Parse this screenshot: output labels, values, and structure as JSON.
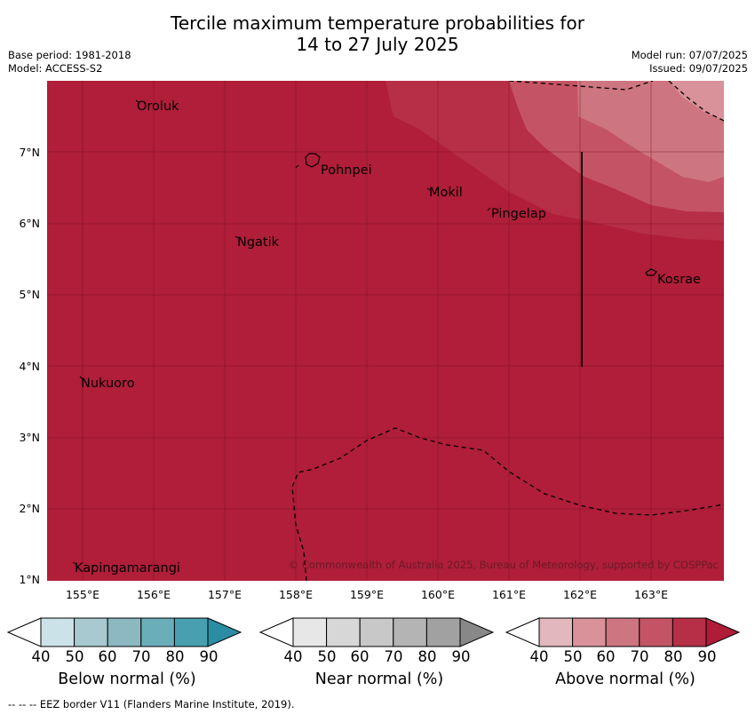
{
  "header": {
    "title_line1": "Tercile maximum temperature probabilities for",
    "title_line2": "14 to 27 July 2025",
    "base_period": "Base period: 1981-2018",
    "model": "Model: ACCESS-S2",
    "model_run": "Model run: 07/07/2025",
    "issued": "Issued: 09/07/2025"
  },
  "map": {
    "lat_labels": [
      "7°N",
      "6°N",
      "5°N",
      "4°N",
      "3°N",
      "2°N",
      "1°N"
    ],
    "lon_labels": [
      "155°E",
      "156°E",
      "157°E",
      "158°E",
      "159°E",
      "160°E",
      "161°E",
      "162°E",
      "163°E"
    ],
    "places": [
      "Oroluk",
      "Pohnpei",
      "Mokil",
      "Pingelap",
      "Ngatik",
      "Kosrae",
      "Nukuoro",
      "Kapingamarangi"
    ],
    "copyright": "© Commonwealth of Australia 2025, Bureau of Meteorology, supported by COSPPac"
  },
  "colorbars": [
    {
      "title": "Below normal (%)",
      "ticks": [
        "40",
        "50",
        "60",
        "70",
        "80",
        "90"
      ],
      "colors": [
        "#ffffff",
        "#cbe3e8",
        "#a7c9cf",
        "#8bb8c1",
        "#6aaeba",
        "#479faf",
        "#2a8da4"
      ]
    },
    {
      "title": "Near normal (%)",
      "ticks": [
        "40",
        "50",
        "60",
        "70",
        "80",
        "90"
      ],
      "colors": [
        "#ffffff",
        "#e7e7e7",
        "#d7d7d7",
        "#c8c8c8",
        "#b4b4b4",
        "#a1a1a1",
        "#888888"
      ]
    },
    {
      "title": "Above normal (%)",
      "ticks": [
        "40",
        "50",
        "60",
        "70",
        "80",
        "90"
      ],
      "colors": [
        "#ffffff",
        "#e2b7bd",
        "#d99299",
        "#cd7580",
        "#c45465",
        "#b72e47",
        "#b01b38"
      ]
    }
  ],
  "footer": {
    "eez_note": "--  --  -- EEZ border V11 (Flanders Marine Institute, 2019)."
  }
}
